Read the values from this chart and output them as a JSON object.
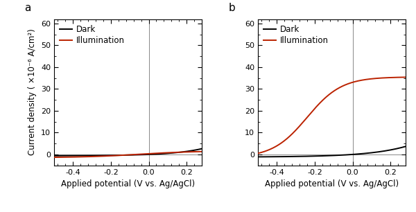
{
  "panel_a_label": "a",
  "panel_b_label": "b",
  "xlabel": "Applied potential (V vs. Ag/AgCl)",
  "ylabel": "Current density ( ×10⁻⁶ A/cm²)",
  "xlim": [
    -0.5,
    0.28
  ],
  "ylim": [
    -5,
    62
  ],
  "xticks": [
    -0.4,
    -0.2,
    0.0,
    0.2
  ],
  "yticks": [
    0,
    10,
    20,
    30,
    40,
    50,
    60
  ],
  "vline_x": 0.0,
  "hline_y": 0.0,
  "dark_color": "#000000",
  "illum_color": "#bb2200",
  "legend_dark": "Dark",
  "legend_illum": "Illumination",
  "bg_color": "#ffffff",
  "label_fontsize": 8.5,
  "tick_fontsize": 8,
  "legend_fontsize": 8.5,
  "linewidth": 1.4,
  "panel_a": {
    "dark_params": [
      0.6,
      6.0,
      0.6
    ],
    "illum_params": [
      2.8,
      7.0,
      0.05,
      1.3,
      0.25
    ]
  },
  "panel_b": {
    "dark_params": [
      1.2,
      5.0,
      1.2
    ],
    "illum_params": [
      37.0,
      11.0,
      0.24,
      1.5
    ]
  }
}
